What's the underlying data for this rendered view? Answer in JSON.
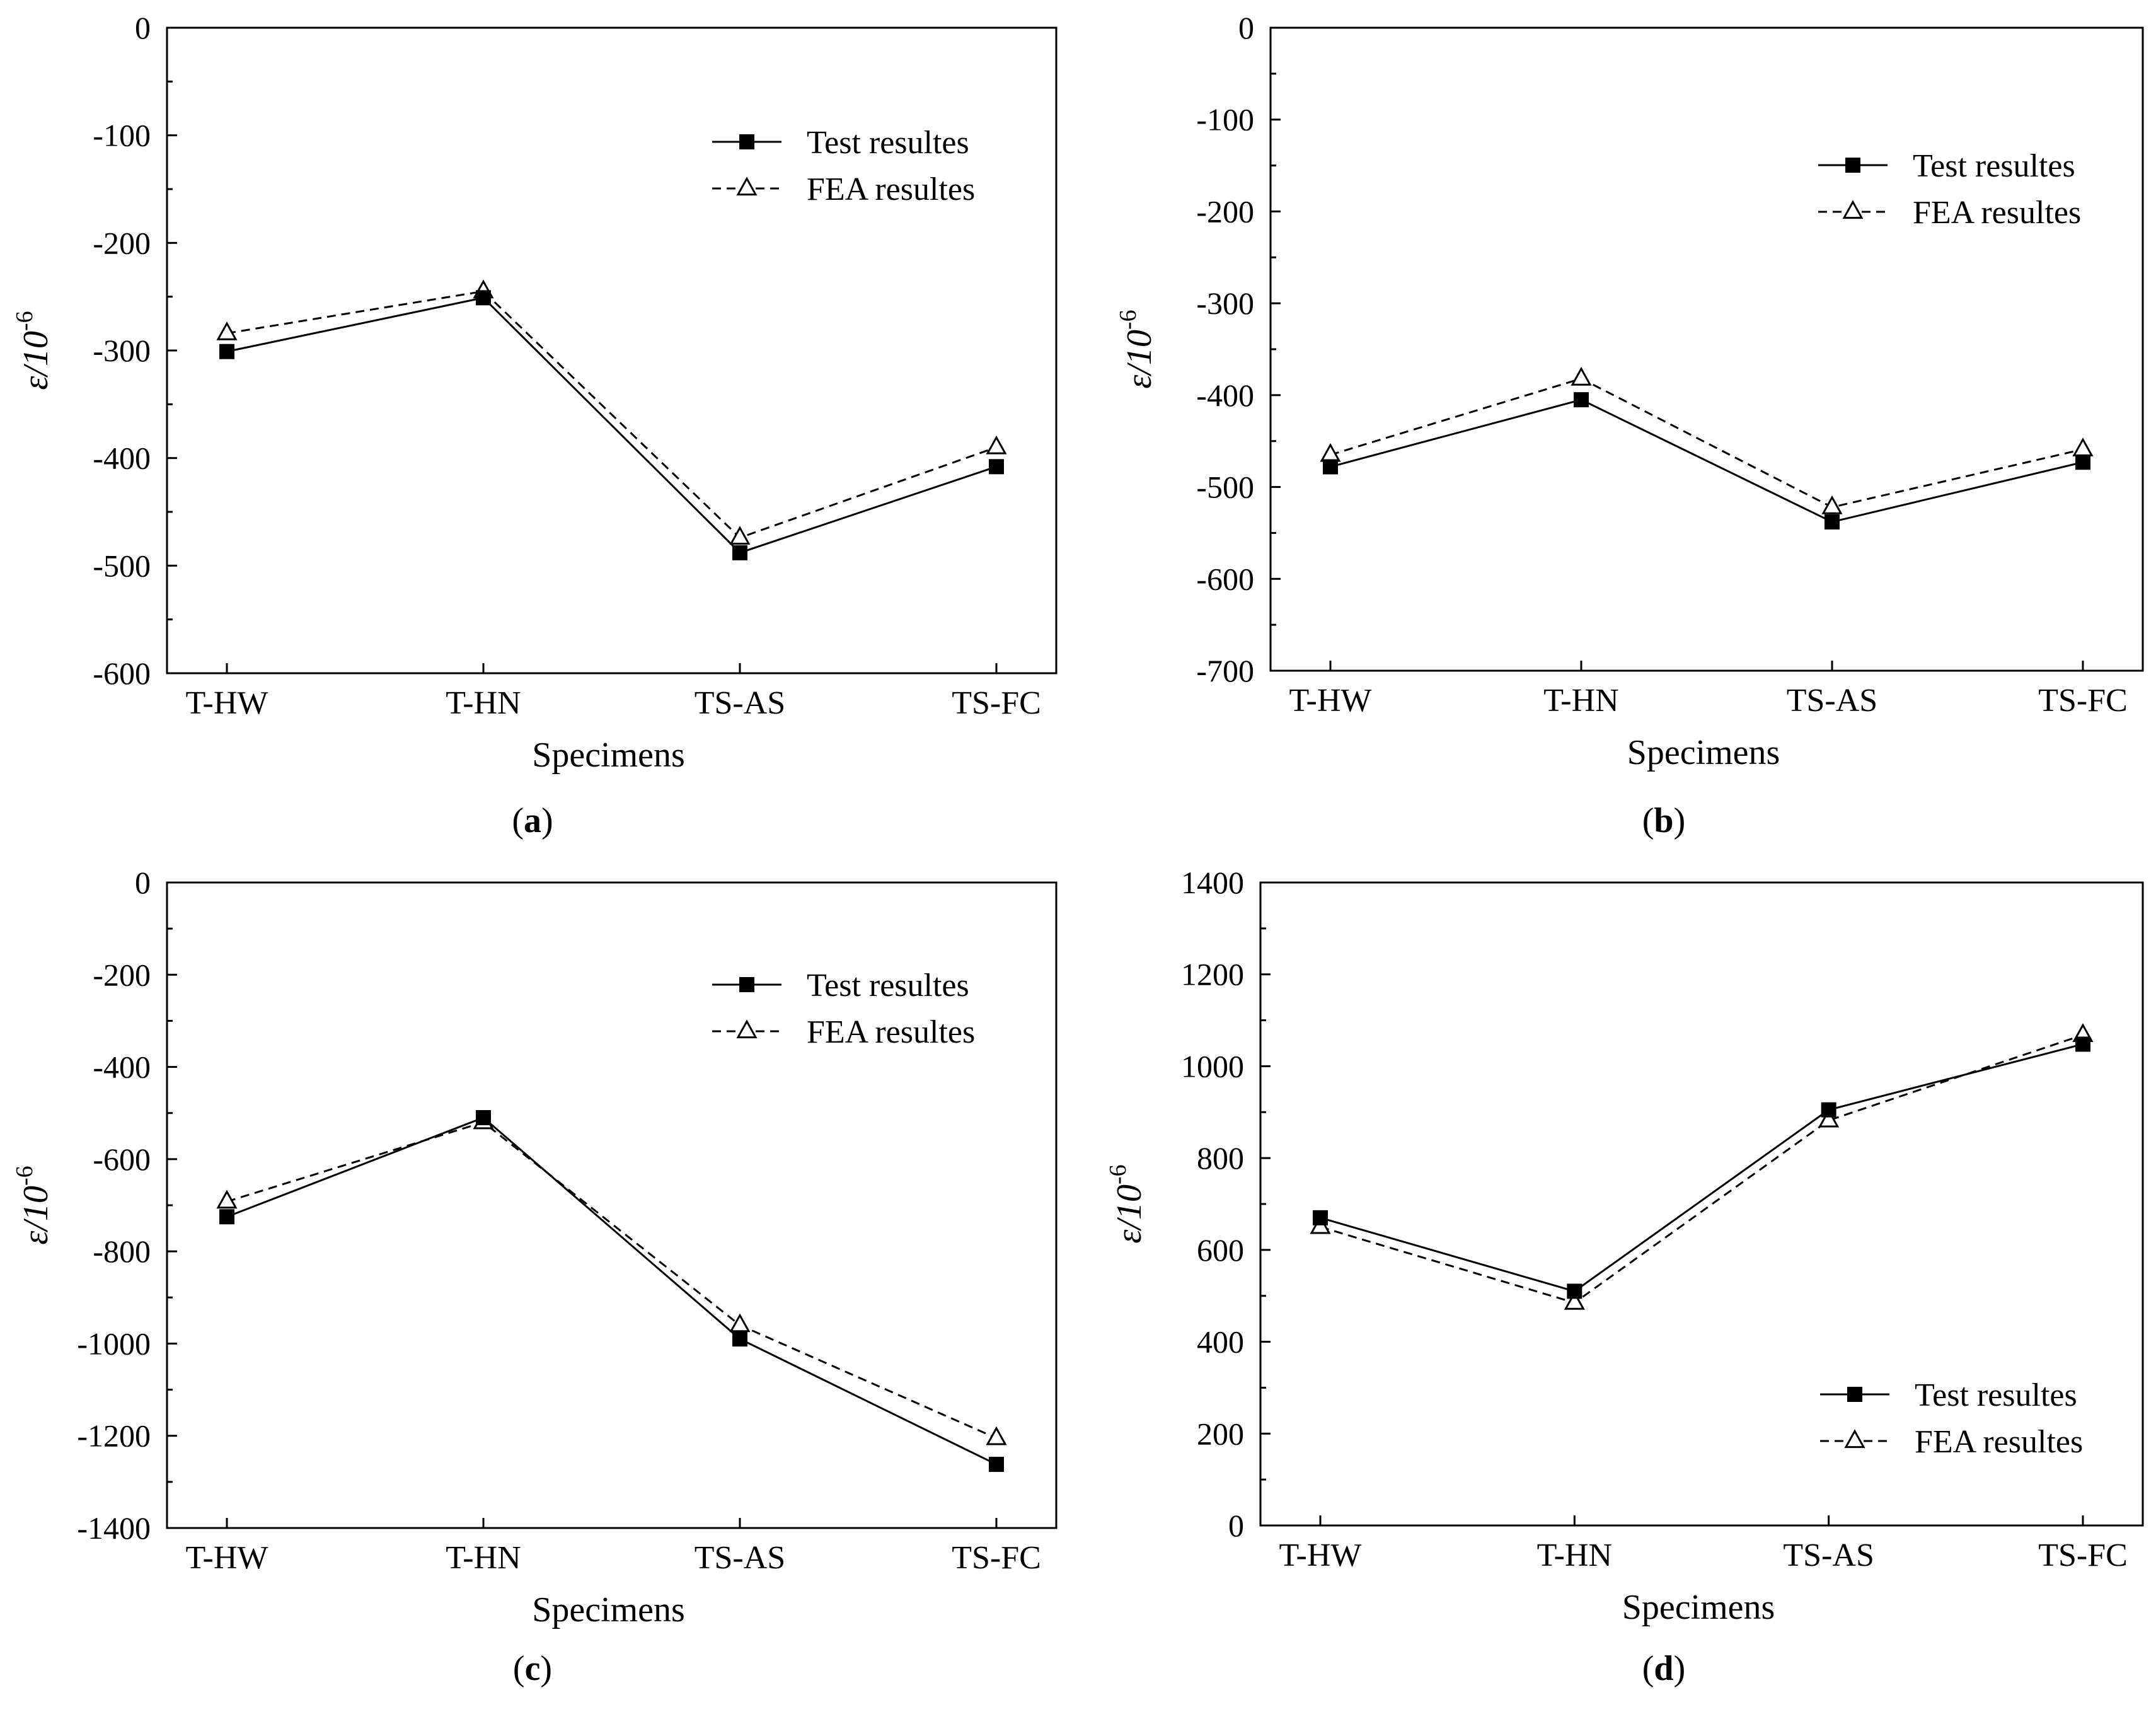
{
  "figure": {
    "panel_labels": [
      "a",
      "b",
      "c",
      "d"
    ]
  },
  "chart_data": [
    {
      "type": "line",
      "panel": "a",
      "categories": [
        "T-HW",
        "T-HN",
        "TS-AS",
        "TS-FC"
      ],
      "xlabel": "Specimens",
      "ylabel": "ε/10",
      "ylabel_sup": "-6",
      "ylim": [
        -600,
        0
      ],
      "yticks": [
        0,
        -100,
        -200,
        -300,
        -400,
        -500,
        -600
      ],
      "legend_position": "top-right",
      "series": [
        {
          "name": "Test resultes",
          "marker": "filled-square",
          "line": "solid",
          "values": [
            -301,
            -251,
            -488,
            -408
          ]
        },
        {
          "name": "FEA resultes",
          "marker": "open-triangle",
          "line": "dashed",
          "values": [
            -284,
            -245,
            -474,
            -390
          ]
        }
      ]
    },
    {
      "type": "line",
      "panel": "b",
      "categories": [
        "T-HW",
        "T-HN",
        "TS-AS",
        "TS-FC"
      ],
      "xlabel": "Specimens",
      "ylabel": "ε/10",
      "ylabel_sup": "-6",
      "ylim": [
        -700,
        0
      ],
      "yticks": [
        0,
        -100,
        -200,
        -300,
        -400,
        -500,
        -600,
        -700
      ],
      "legend_position": "top-right",
      "series": [
        {
          "name": "Test resultes",
          "marker": "filled-square",
          "line": "solid",
          "values": [
            -478,
            -405,
            -538,
            -473
          ]
        },
        {
          "name": "FEA resultes",
          "marker": "open-triangle",
          "line": "dashed",
          "values": [
            -465,
            -382,
            -522,
            -459
          ]
        }
      ]
    },
    {
      "type": "line",
      "panel": "c",
      "categories": [
        "T-HW",
        "T-HN",
        "TS-AS",
        "TS-FC"
      ],
      "xlabel": "Specimens",
      "ylabel": "ε/10",
      "ylabel_sup": "-6",
      "ylim": [
        -1400,
        0
      ],
      "yticks": [
        0,
        -200,
        -400,
        -600,
        -800,
        -1000,
        -1200,
        -1400
      ],
      "legend_position": "top-right",
      "series": [
        {
          "name": "Test resultes",
          "marker": "filled-square",
          "line": "solid",
          "values": [
            -725,
            -510,
            -990,
            -1262
          ]
        },
        {
          "name": "FEA resultes",
          "marker": "open-triangle",
          "line": "dashed",
          "values": [
            -692,
            -520,
            -960,
            -1205
          ]
        }
      ]
    },
    {
      "type": "line",
      "panel": "d",
      "categories": [
        "T-HW",
        "T-HN",
        "TS-AS",
        "TS-FC"
      ],
      "xlabel": "Specimens",
      "ylabel": "ε/10",
      "ylabel_sup": "-6",
      "ylim": [
        0,
        1400
      ],
      "yticks": [
        0,
        200,
        400,
        600,
        800,
        1000,
        1200,
        1400
      ],
      "legend_position": "bottom-right",
      "series": [
        {
          "name": "Test resultes",
          "marker": "filled-square",
          "line": "solid",
          "values": [
            670,
            510,
            905,
            1048
          ]
        },
        {
          "name": "FEA resultes",
          "marker": "open-triangle",
          "line": "dashed",
          "values": [
            650,
            485,
            882,
            1068
          ]
        }
      ]
    }
  ]
}
